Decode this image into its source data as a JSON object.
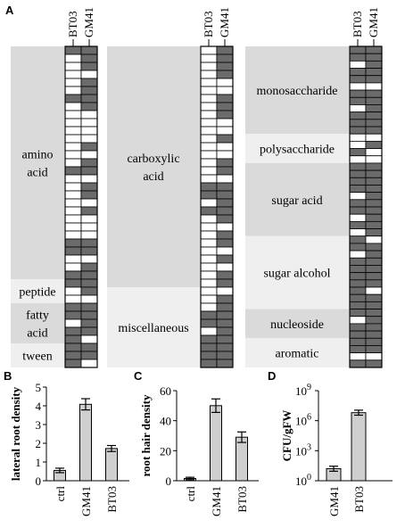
{
  "panels": {
    "A": "A",
    "B": "B",
    "C": "C",
    "D": "D"
  },
  "colors": {
    "positive": "#6b6b6b",
    "negative": "#ffffff",
    "band_dark": "#dadada",
    "band_light": "#efefef",
    "bar": "#cfcfcf"
  },
  "chart_data": [
    {
      "type": "table",
      "panel": "A",
      "columns": [
        "BT03",
        "GM41"
      ],
      "groups": [
        {
          "groups": [
            {
              "label": "amino\nacid",
              "rows": [
                [
                  1,
                  1
                ],
                [
                  0,
                  1
                ],
                [
                  0,
                  1
                ],
                [
                  0,
                  0
                ],
                [
                  0,
                  1
                ],
                [
                  0,
                  1
                ],
                [
                  1,
                  1
                ],
                [
                  0,
                  1
                ],
                [
                  0,
                  0
                ],
                [
                  0,
                  0
                ],
                [
                  0,
                  0
                ],
                [
                  0,
                  0
                ],
                [
                  0,
                  1
                ],
                [
                  0,
                  0
                ],
                [
                  0,
                  1
                ],
                [
                  1,
                  1
                ],
                [
                  0,
                  0
                ],
                [
                  0,
                  1
                ],
                [
                  0,
                  1
                ],
                [
                  0,
                  0
                ],
                [
                  0,
                  1
                ],
                [
                  0,
                  0
                ],
                [
                  0,
                  0
                ],
                [
                  0,
                  0
                ],
                [
                  1,
                  1
                ],
                [
                  1,
                  1
                ],
                [
                  0,
                  0
                ],
                [
                  0,
                  1
                ],
                [
                  1,
                  1
                ]
              ]
            },
            {
              "label": "peptide",
              "rows": [
                [
                  1,
                  1
                ],
                [
                  0,
                  1
                ],
                [
                  0,
                  0
                ]
              ]
            },
            {
              "label": "fatty\nacid",
              "rows": [
                [
                  1,
                  1
                ],
                [
                  1,
                  1
                ],
                [
                  0,
                  1
                ],
                [
                  1,
                  1
                ],
                [
                  1,
                  0
                ]
              ]
            },
            {
              "label": "tween",
              "rows": [
                [
                  1,
                  1
                ],
                [
                  1,
                  1
                ],
                [
                  1,
                  0
                ]
              ]
            }
          ]
        },
        {
          "groups": [
            {
              "label": "carboxylic\nacid",
              "rows": [
                [
                  0,
                  1
                ],
                [
                  0,
                  1
                ],
                [
                  0,
                  1
                ],
                [
                  0,
                  1
                ],
                [
                  0,
                  0
                ],
                [
                  0,
                  0
                ],
                [
                  0,
                  1
                ],
                [
                  0,
                  1
                ],
                [
                  0,
                  1
                ],
                [
                  0,
                  0
                ],
                [
                  0,
                  0
                ],
                [
                  0,
                  1
                ],
                [
                  0,
                  0
                ],
                [
                  0,
                  0
                ],
                [
                  0,
                  1
                ],
                [
                  0,
                  1
                ],
                [
                  0,
                  0
                ],
                [
                  1,
                  1
                ],
                [
                  1,
                  1
                ],
                [
                  0,
                  1
                ],
                [
                  1,
                  1
                ],
                [
                  0,
                  1
                ],
                [
                  0,
                  0
                ],
                [
                  0,
                  1
                ],
                [
                  0,
                  1
                ],
                [
                  0,
                  0
                ],
                [
                  0,
                  1
                ],
                [
                  0,
                  0
                ],
                [
                  0,
                  1
                ],
                [
                  0,
                  1
                ]
              ]
            },
            {
              "label": "miscellaneous",
              "rows": [
                [
                  0,
                  0
                ],
                [
                  0,
                  1
                ],
                [
                  0,
                  1
                ],
                [
                  1,
                  1
                ],
                [
                  1,
                  1
                ],
                [
                  0,
                  1
                ],
                [
                  1,
                  1
                ],
                [
                  1,
                  1
                ],
                [
                  1,
                  1
                ],
                [
                  1,
                  1
                ]
              ]
            }
          ]
        },
        {
          "groups": [
            {
              "label": "monosaccharide",
              "rows": [
                [
                  1,
                  1
                ],
                [
                  1,
                  1
                ],
                [
                  0,
                  1
                ],
                [
                  1,
                  1
                ],
                [
                  1,
                  1
                ],
                [
                  0,
                  0
                ],
                [
                  1,
                  1
                ],
                [
                  1,
                  1
                ],
                [
                  0,
                  1
                ],
                [
                  1,
                  1
                ],
                [
                  1,
                  1
                ],
                [
                  1,
                  1
                ]
              ]
            },
            {
              "label": "polysaccharide",
              "rows": [
                [
                  0,
                  0
                ],
                [
                  0,
                  1
                ],
                [
                  1,
                  0
                ],
                [
                  0,
                  0
                ]
              ]
            },
            {
              "label": "sugar acid",
              "rows": [
                [
                  1,
                  1
                ],
                [
                  1,
                  1
                ],
                [
                  1,
                  1
                ],
                [
                  1,
                  1
                ],
                [
                  0,
                  1
                ],
                [
                  1,
                  1
                ],
                [
                  1,
                  1
                ],
                [
                  0,
                  1
                ],
                [
                  1,
                  1
                ],
                [
                  0,
                  1
                ]
              ]
            },
            {
              "label": "sugar alcohol",
              "rows": [
                [
                  1,
                  0
                ],
                [
                  1,
                  1
                ],
                [
                  0,
                  1
                ],
                [
                  1,
                  1
                ],
                [
                  1,
                  1
                ],
                [
                  1,
                  1
                ],
                [
                  1,
                  1
                ],
                [
                  1,
                  0
                ],
                [
                  1,
                  1
                ],
                [
                  1,
                  1
                ]
              ]
            },
            {
              "label": "nucleoside",
              "rows": [
                [
                  1,
                  1
                ],
                [
                  0,
                  1
                ],
                [
                  1,
                  1
                ],
                [
                  1,
                  1
                ]
              ]
            },
            {
              "label": "aromatic",
              "rows": [
                [
                  1,
                  1
                ],
                [
                  1,
                  1
                ],
                [
                  0,
                  0
                ],
                [
                  1,
                  1
                ]
              ]
            }
          ]
        }
      ]
    },
    {
      "type": "bar",
      "panel": "B",
      "categories": [
        "ctrl",
        "GM41",
        "BT03"
      ],
      "values": [
        0.55,
        4.08,
        1.72
      ],
      "errors": [
        0.12,
        0.3,
        0.16
      ],
      "ylabel": "lateral root density",
      "ylim": [
        0,
        5
      ],
      "yticks": [
        "0",
        "1",
        "2",
        "3",
        "4",
        "5"
      ]
    },
    {
      "type": "bar",
      "panel": "C",
      "categories": [
        "ctrl",
        "GM41",
        "BT03"
      ],
      "values": [
        1.5,
        50,
        29
      ],
      "errors": [
        0.8,
        4.5,
        3.5
      ],
      "ylabel": "root hair density",
      "ylim": [
        0,
        60
      ],
      "yticks": [
        "0",
        "20",
        "40",
        "60"
      ]
    },
    {
      "type": "bar",
      "panel": "D",
      "categories": [
        "GM41",
        "BT03"
      ],
      "values": [
        1.2,
        6.8
      ],
      "errors": [
        0.25,
        0.25
      ],
      "log_scale": true,
      "ylabel": "CFU/gFW",
      "ylim": [
        0,
        9
      ],
      "ytick_base": "10",
      "ytick_exponents": [
        "0",
        "3",
        "6",
        "9"
      ]
    }
  ]
}
